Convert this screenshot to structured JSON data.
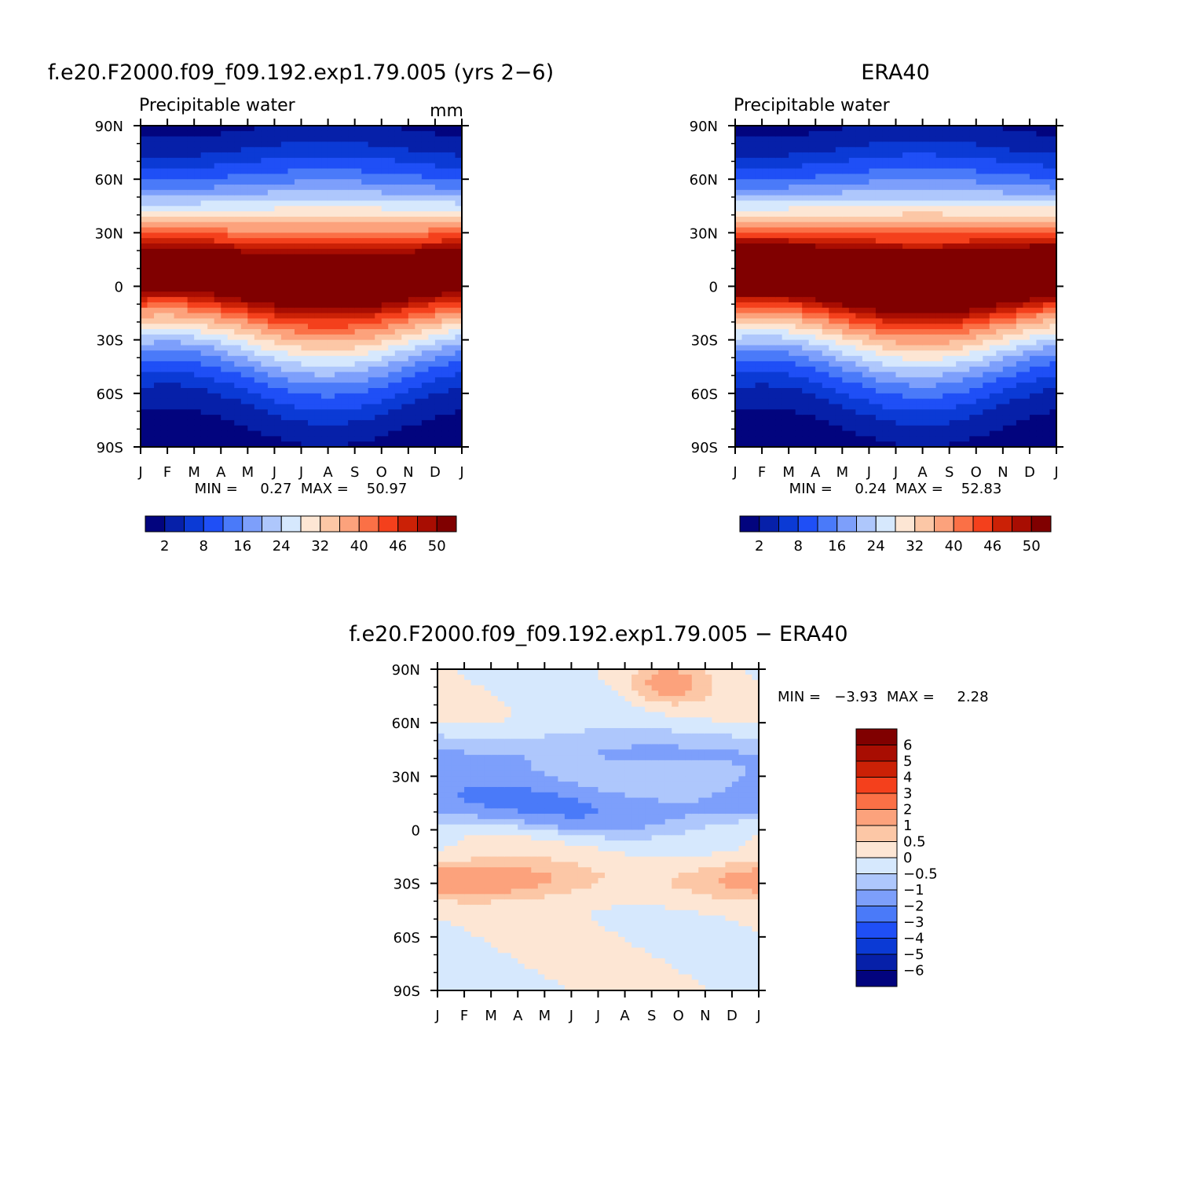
{
  "chart_data": [
    {
      "type": "heatmap",
      "panel": "model",
      "title": "f.e20.F2000.f09_f09.192.exp1.79.005 (yrs 2−6)",
      "subtitle_left": "Precipitable water",
      "subtitle_right": "mm",
      "x_ticks": [
        "J",
        "F",
        "M",
        "A",
        "M",
        "J",
        "J",
        "A",
        "S",
        "O",
        "N",
        "D",
        "J"
      ],
      "y_ticks": [
        "90N",
        "60N",
        "30N",
        "0",
        "30S",
        "60S",
        "90S"
      ],
      "ylim": [
        -90,
        90
      ],
      "stats_text": "MIN =     0.27  MAX =    50.97",
      "min": 0.27,
      "max": 50.97,
      "colorbar_labels": [
        "2",
        "8",
        "16",
        "24",
        "32",
        "40",
        "46",
        "50"
      ]
    },
    {
      "type": "heatmap",
      "panel": "obs",
      "title": "ERA40",
      "subtitle_left": "Precipitable water",
      "subtitle_right": "",
      "x_ticks": [
        "J",
        "F",
        "M",
        "A",
        "M",
        "J",
        "J",
        "A",
        "S",
        "O",
        "N",
        "D",
        "J"
      ],
      "y_ticks": [
        "90N",
        "60N",
        "30N",
        "0",
        "30S",
        "60S",
        "90S"
      ],
      "ylim": [
        -90,
        90
      ],
      "stats_text": "MIN =     0.24  MAX =    52.83",
      "min": 0.24,
      "max": 52.83,
      "colorbar_labels": [
        "2",
        "8",
        "16",
        "24",
        "32",
        "40",
        "46",
        "50"
      ]
    },
    {
      "type": "heatmap",
      "panel": "difference",
      "title": "f.e20.F2000.f09_f09.192.exp1.79.005 − ERA40",
      "x_ticks": [
        "J",
        "F",
        "M",
        "A",
        "M",
        "J",
        "J",
        "A",
        "S",
        "O",
        "N",
        "D",
        "J"
      ],
      "y_ticks": [
        "90N",
        "60N",
        "30N",
        "0",
        "30S",
        "60S",
        "90S"
      ],
      "ylim": [
        -90,
        90
      ],
      "stats_text": "MIN =   −3.93  MAX =     2.28",
      "min": -3.93,
      "max": 2.28,
      "colorbar_labels": [
        "6",
        "5",
        "4",
        "3",
        "2",
        "1",
        "0.5",
        "0",
        "−0.5",
        "−1",
        "−2",
        "−3",
        "−4",
        "−5",
        "−6"
      ]
    }
  ],
  "palettes": {
    "full": [
      "#02047e",
      "#0620a9",
      "#0b3ad5",
      "#1f4ff6",
      "#4a7af9",
      "#7d9ffb",
      "#aec7fc",
      "#d6e8fd",
      "#fde6d4",
      "#fcc7a6",
      "#fca27c",
      "#fb7046",
      "#f4401c",
      "#cb2106",
      "#a80d02",
      "#800000"
    ],
    "diff": [
      "#02047e",
      "#0620a9",
      "#0b3ad5",
      "#1f4ff6",
      "#4a7af9",
      "#7d9ffb",
      "#aec7fc",
      "#d6e8fd",
      "#fde6d4",
      "#fcc7a6",
      "#fca27c",
      "#fb7046",
      "#f4401c",
      "#cb2106",
      "#a80d02",
      "#800000"
    ]
  }
}
